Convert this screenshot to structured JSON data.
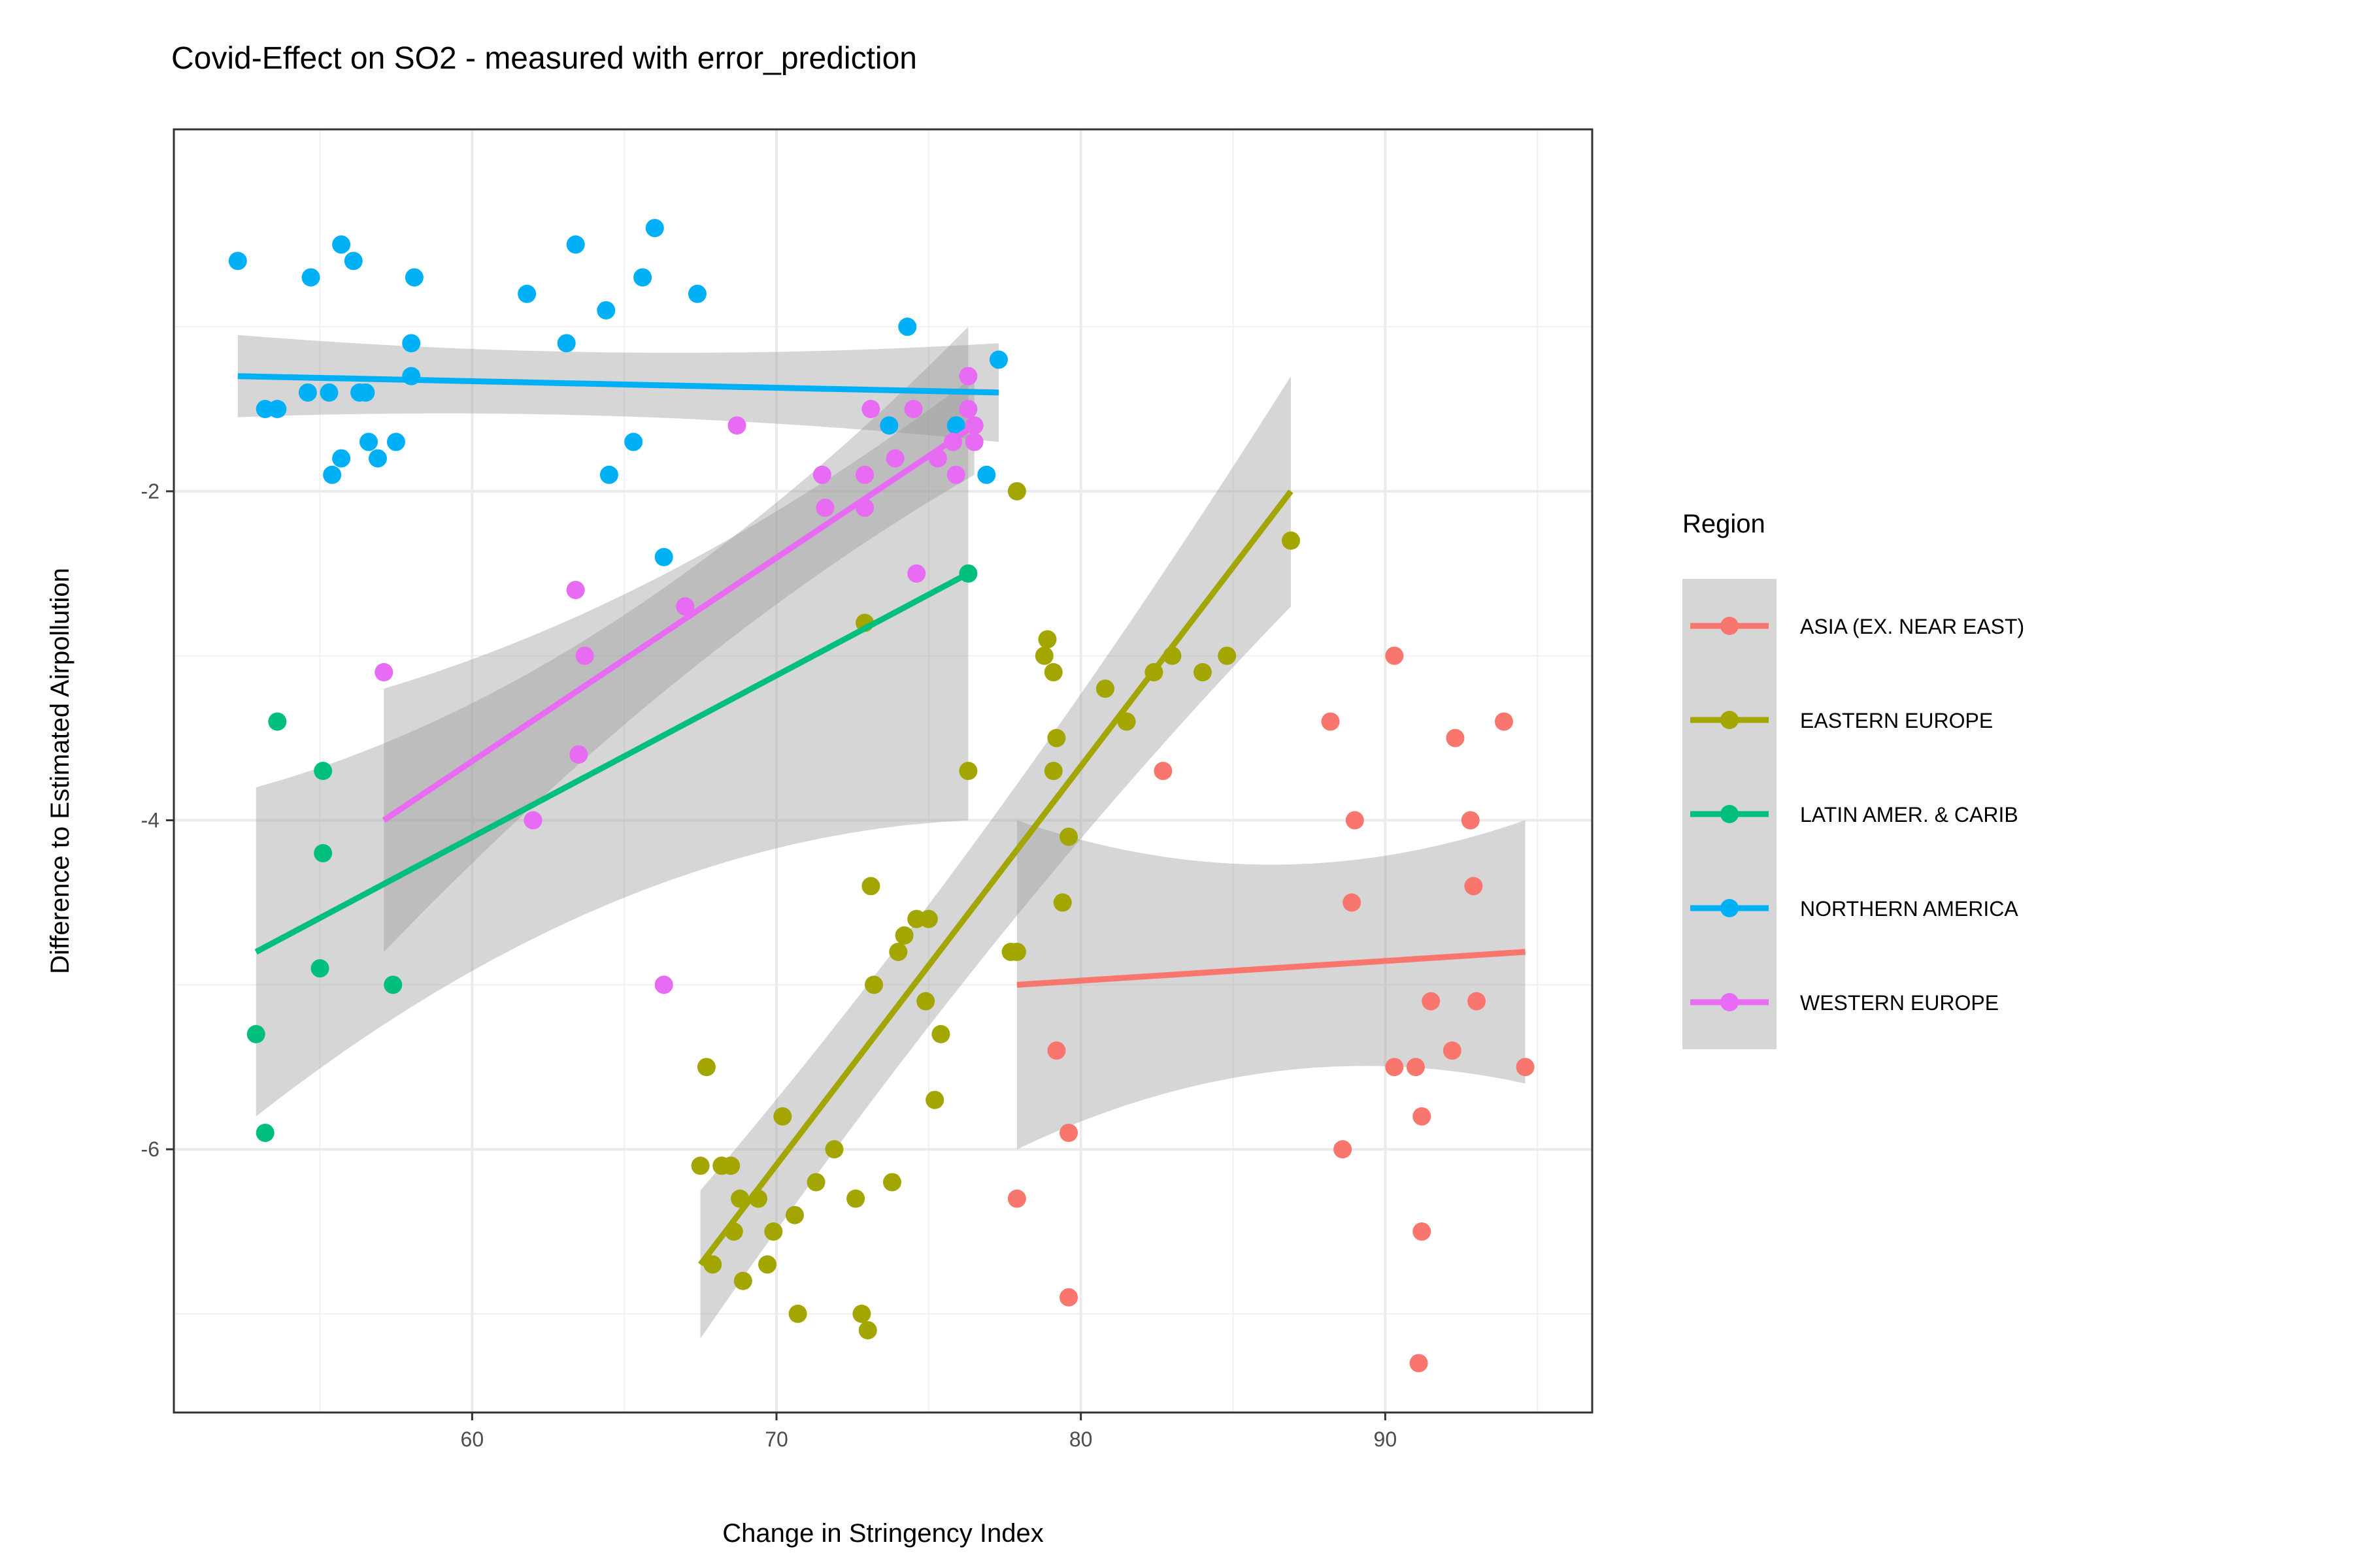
{
  "chart_data": {
    "type": "scatter",
    "title": "Covid-Effect on SO2 - measured with error_prediction",
    "xlabel": "Change in Stringency Index",
    "ylabel": "Difference to Estimated Airpollution",
    "xlim": [
      50.2,
      96.8
    ],
    "ylim": [
      -7.6,
      0.2
    ],
    "x_ticks": [
      60,
      70,
      80,
      90
    ],
    "y_ticks": [
      -6,
      -4,
      -2
    ],
    "grid": true,
    "legend": {
      "title": "Region",
      "placement": "right"
    },
    "series": [
      {
        "name": "ASIA (EX. NEAR EAST)",
        "color": "#F8766D",
        "points": [
          [
            90.3,
            -3.0
          ],
          [
            88.2,
            -3.4
          ],
          [
            92.3,
            -3.5
          ],
          [
            93.9,
            -3.4
          ],
          [
            82.7,
            -3.7
          ],
          [
            89.0,
            -4.0
          ],
          [
            92.8,
            -4.0
          ],
          [
            88.9,
            -4.5
          ],
          [
            92.9,
            -4.4
          ],
          [
            91.5,
            -5.1
          ],
          [
            93.0,
            -5.1
          ],
          [
            92.2,
            -5.4
          ],
          [
            90.3,
            -5.5
          ],
          [
            91.0,
            -5.5
          ],
          [
            94.6,
            -5.5
          ],
          [
            79.2,
            -5.4
          ],
          [
            91.2,
            -5.8
          ],
          [
            79.6,
            -5.9
          ],
          [
            88.6,
            -6.0
          ],
          [
            77.9,
            -6.3
          ],
          [
            91.2,
            -6.5
          ],
          [
            79.6,
            -6.9
          ],
          [
            91.1,
            -7.3
          ]
        ],
        "fit": {
          "x": [
            77.9,
            94.6
          ],
          "y": [
            -5.0,
            -4.8
          ],
          "ci_low": [
            -6.0,
            -5.6
          ],
          "ci_high": [
            -4.0,
            -4.0
          ]
        }
      },
      {
        "name": "EASTERN EUROPE",
        "color": "#A3A500",
        "points": [
          [
            77.9,
            -2.0
          ],
          [
            86.9,
            -2.3
          ],
          [
            72.9,
            -2.8
          ],
          [
            78.9,
            -2.9
          ],
          [
            78.8,
            -3.0
          ],
          [
            83.0,
            -3.0
          ],
          [
            84.8,
            -3.0
          ],
          [
            79.1,
            -3.1
          ],
          [
            82.4,
            -3.1
          ],
          [
            84.0,
            -3.1
          ],
          [
            80.8,
            -3.2
          ],
          [
            81.5,
            -3.4
          ],
          [
            79.2,
            -3.5
          ],
          [
            79.1,
            -3.7
          ],
          [
            76.3,
            -3.7
          ],
          [
            79.6,
            -4.1
          ],
          [
            73.1,
            -4.4
          ],
          [
            79.4,
            -4.5
          ],
          [
            74.6,
            -4.6
          ],
          [
            75.0,
            -4.6
          ],
          [
            74.2,
            -4.7
          ],
          [
            74.0,
            -4.8
          ],
          [
            77.7,
            -4.8
          ],
          [
            77.9,
            -4.8
          ],
          [
            73.2,
            -5.0
          ],
          [
            74.9,
            -5.1
          ],
          [
            75.4,
            -5.3
          ],
          [
            67.7,
            -5.5
          ],
          [
            75.2,
            -5.7
          ],
          [
            70.2,
            -5.8
          ],
          [
            71.9,
            -6.0
          ],
          [
            67.5,
            -6.1
          ],
          [
            68.2,
            -6.1
          ],
          [
            68.5,
            -6.1
          ],
          [
            73.8,
            -6.2
          ],
          [
            71.3,
            -6.2
          ],
          [
            68.8,
            -6.3
          ],
          [
            69.4,
            -6.3
          ],
          [
            72.6,
            -6.3
          ],
          [
            70.6,
            -6.4
          ],
          [
            68.6,
            -6.5
          ],
          [
            69.9,
            -6.5
          ],
          [
            67.9,
            -6.7
          ],
          [
            69.7,
            -6.7
          ],
          [
            68.9,
            -6.8
          ],
          [
            72.8,
            -7.0
          ],
          [
            70.7,
            -7.0
          ],
          [
            73.0,
            -7.1
          ]
        ],
        "fit": {
          "x": [
            67.5,
            86.9
          ],
          "y": [
            -6.7,
            -2.0
          ],
          "ci_low": [
            -7.1,
            -2.6
          ],
          "ci_high": [
            -6.2,
            -1.2
          ]
        }
      },
      {
        "name": "LATIN AMER. & CARIB",
        "color": "#00BF7D",
        "points": [
          [
            76.3,
            -2.5
          ],
          [
            53.6,
            -3.4
          ],
          [
            55.1,
            -3.7
          ],
          [
            55.1,
            -4.2
          ],
          [
            55.0,
            -4.9
          ],
          [
            57.4,
            -5.0
          ],
          [
            52.9,
            -5.3
          ],
          [
            53.2,
            -5.9
          ]
        ],
        "fit": {
          "x": [
            52.9,
            76.3
          ],
          "y": [
            -4.8,
            -2.5
          ],
          "ci_low": [
            -5.9,
            -3.7
          ],
          "ci_high": [
            -3.9,
            -0.7
          ]
        }
      },
      {
        "name": "NORTHERN AMERICA",
        "color": "#00B0F6",
        "points": [
          [
            66.0,
            -0.4
          ],
          [
            55.7,
            -0.5
          ],
          [
            63.4,
            -0.5
          ],
          [
            52.3,
            -0.6
          ],
          [
            56.1,
            -0.6
          ],
          [
            54.7,
            -0.7
          ],
          [
            58.1,
            -0.7
          ],
          [
            65.6,
            -0.7
          ],
          [
            67.4,
            -0.8
          ],
          [
            61.8,
            -0.8
          ],
          [
            64.4,
            -0.9
          ],
          [
            74.3,
            -1.0
          ],
          [
            63.1,
            -1.1
          ],
          [
            58.0,
            -1.1
          ],
          [
            77.3,
            -1.2
          ],
          [
            58.0,
            -1.3
          ],
          [
            54.6,
            -1.4
          ],
          [
            55.3,
            -1.4
          ],
          [
            56.3,
            -1.4
          ],
          [
            56.5,
            -1.4
          ],
          [
            53.2,
            -1.5
          ],
          [
            53.6,
            -1.5
          ],
          [
            75.9,
            -1.6
          ],
          [
            73.7,
            -1.6
          ],
          [
            56.6,
            -1.7
          ],
          [
            57.5,
            -1.7
          ],
          [
            65.3,
            -1.7
          ],
          [
            56.9,
            -1.8
          ],
          [
            55.7,
            -1.8
          ],
          [
            64.5,
            -1.9
          ],
          [
            76.9,
            -1.9
          ],
          [
            55.4,
            -1.9
          ],
          [
            66.3,
            -2.4
          ]
        ],
        "fit": {
          "x": [
            52.3,
            77.3
          ],
          "y": [
            -1.3,
            -1.4
          ],
          "ci_low": [
            -1.5,
            -1.7
          ],
          "ci_high": [
            -1.0,
            -1.1
          ]
        }
      },
      {
        "name": "WESTERN EUROPE",
        "color": "#E76BF3",
        "points": [
          [
            76.3,
            -1.3
          ],
          [
            76.3,
            -1.5
          ],
          [
            73.1,
            -1.5
          ],
          [
            74.5,
            -1.5
          ],
          [
            76.5,
            -1.6
          ],
          [
            68.7,
            -1.6
          ],
          [
            75.8,
            -1.7
          ],
          [
            76.5,
            -1.7
          ],
          [
            75.3,
            -1.8
          ],
          [
            73.9,
            -1.8
          ],
          [
            75.9,
            -1.9
          ],
          [
            71.5,
            -1.9
          ],
          [
            72.9,
            -1.9
          ],
          [
            71.6,
            -2.1
          ],
          [
            72.9,
            -2.1
          ],
          [
            74.6,
            -2.5
          ],
          [
            63.4,
            -2.6
          ],
          [
            67.0,
            -2.7
          ],
          [
            63.7,
            -3.0
          ],
          [
            57.1,
            -3.1
          ],
          [
            63.5,
            -3.6
          ],
          [
            62.0,
            -4.0
          ],
          [
            66.3,
            -5.0
          ]
        ],
        "fit": {
          "x": [
            57.1,
            76.5
          ],
          "y": [
            -4.0,
            -1.6
          ],
          "ci_low": [
            -4.7,
            -1.8
          ],
          "ci_high": [
            -3.1,
            -1.2
          ]
        }
      }
    ]
  }
}
